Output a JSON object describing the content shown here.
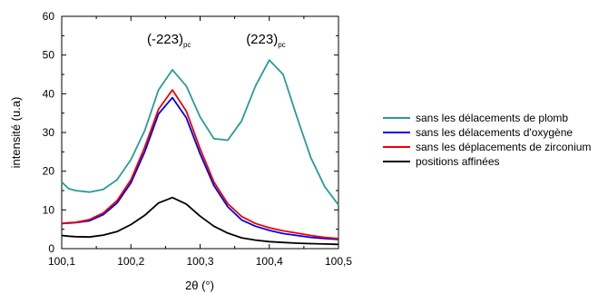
{
  "chart_data": {
    "type": "line",
    "xlabel": "2θ (°)",
    "ylabel": "intensité (u.a)",
    "xlim": [
      100.1,
      100.5
    ],
    "ylim": [
      0,
      60
    ],
    "xticks": [
      "100,1",
      "100,2",
      "100,3",
      "100,4",
      "100,5"
    ],
    "yticks": [
      "0",
      "10",
      "20",
      "30",
      "40",
      "50",
      "60"
    ],
    "grid": false,
    "legend_position": "right",
    "annotations": [
      {
        "text": "(-223)",
        "sub": "pc",
        "x": 100.255,
        "y": 53
      },
      {
        "text": "(223)",
        "sub": "pc",
        "x": 100.395,
        "y": 53
      }
    ],
    "x": [
      100.1,
      100.11,
      100.12,
      100.14,
      100.16,
      100.18,
      100.2,
      100.22,
      100.24,
      100.26,
      100.28,
      100.3,
      100.32,
      100.34,
      100.36,
      100.38,
      100.4,
      100.42,
      100.44,
      100.46,
      100.48,
      100.5
    ],
    "series": [
      {
        "name": "sans les délacements de plomb",
        "color": "#2a9a9a",
        "values": [
          17.2,
          15.5,
          15.0,
          14.6,
          15.3,
          17.8,
          23.0,
          30.5,
          41.0,
          46.2,
          42.0,
          34.0,
          28.4,
          28.0,
          33.0,
          42.0,
          48.7,
          45.0,
          34.0,
          23.5,
          16.0,
          11.3
        ]
      },
      {
        "name": "sans les délacements d'oxygène",
        "color": "#0000ee",
        "values": [
          6.5,
          6.6,
          6.7,
          7.2,
          8.8,
          11.8,
          17.0,
          25.0,
          34.8,
          39.0,
          33.8,
          24.5,
          16.3,
          10.8,
          7.4,
          5.8,
          4.7,
          3.9,
          3.4,
          2.9,
          2.6,
          2.4
        ]
      },
      {
        "name": "sans les déplacements de zirconium",
        "color": "#ee0000",
        "values": [
          6.5,
          6.7,
          6.8,
          7.5,
          9.2,
          12.4,
          17.8,
          26.2,
          36.0,
          41.0,
          35.5,
          25.8,
          17.2,
          11.6,
          8.3,
          6.5,
          5.4,
          4.6,
          4.0,
          3.4,
          2.9,
          2.6
        ]
      },
      {
        "name": "positions affinées",
        "color": "#000000",
        "values": [
          3.4,
          3.2,
          3.1,
          3.0,
          3.5,
          4.4,
          6.2,
          8.6,
          11.8,
          13.2,
          11.5,
          8.4,
          5.8,
          4.0,
          2.8,
          2.2,
          1.8,
          1.6,
          1.4,
          1.3,
          1.2,
          1.1
        ]
      }
    ]
  }
}
